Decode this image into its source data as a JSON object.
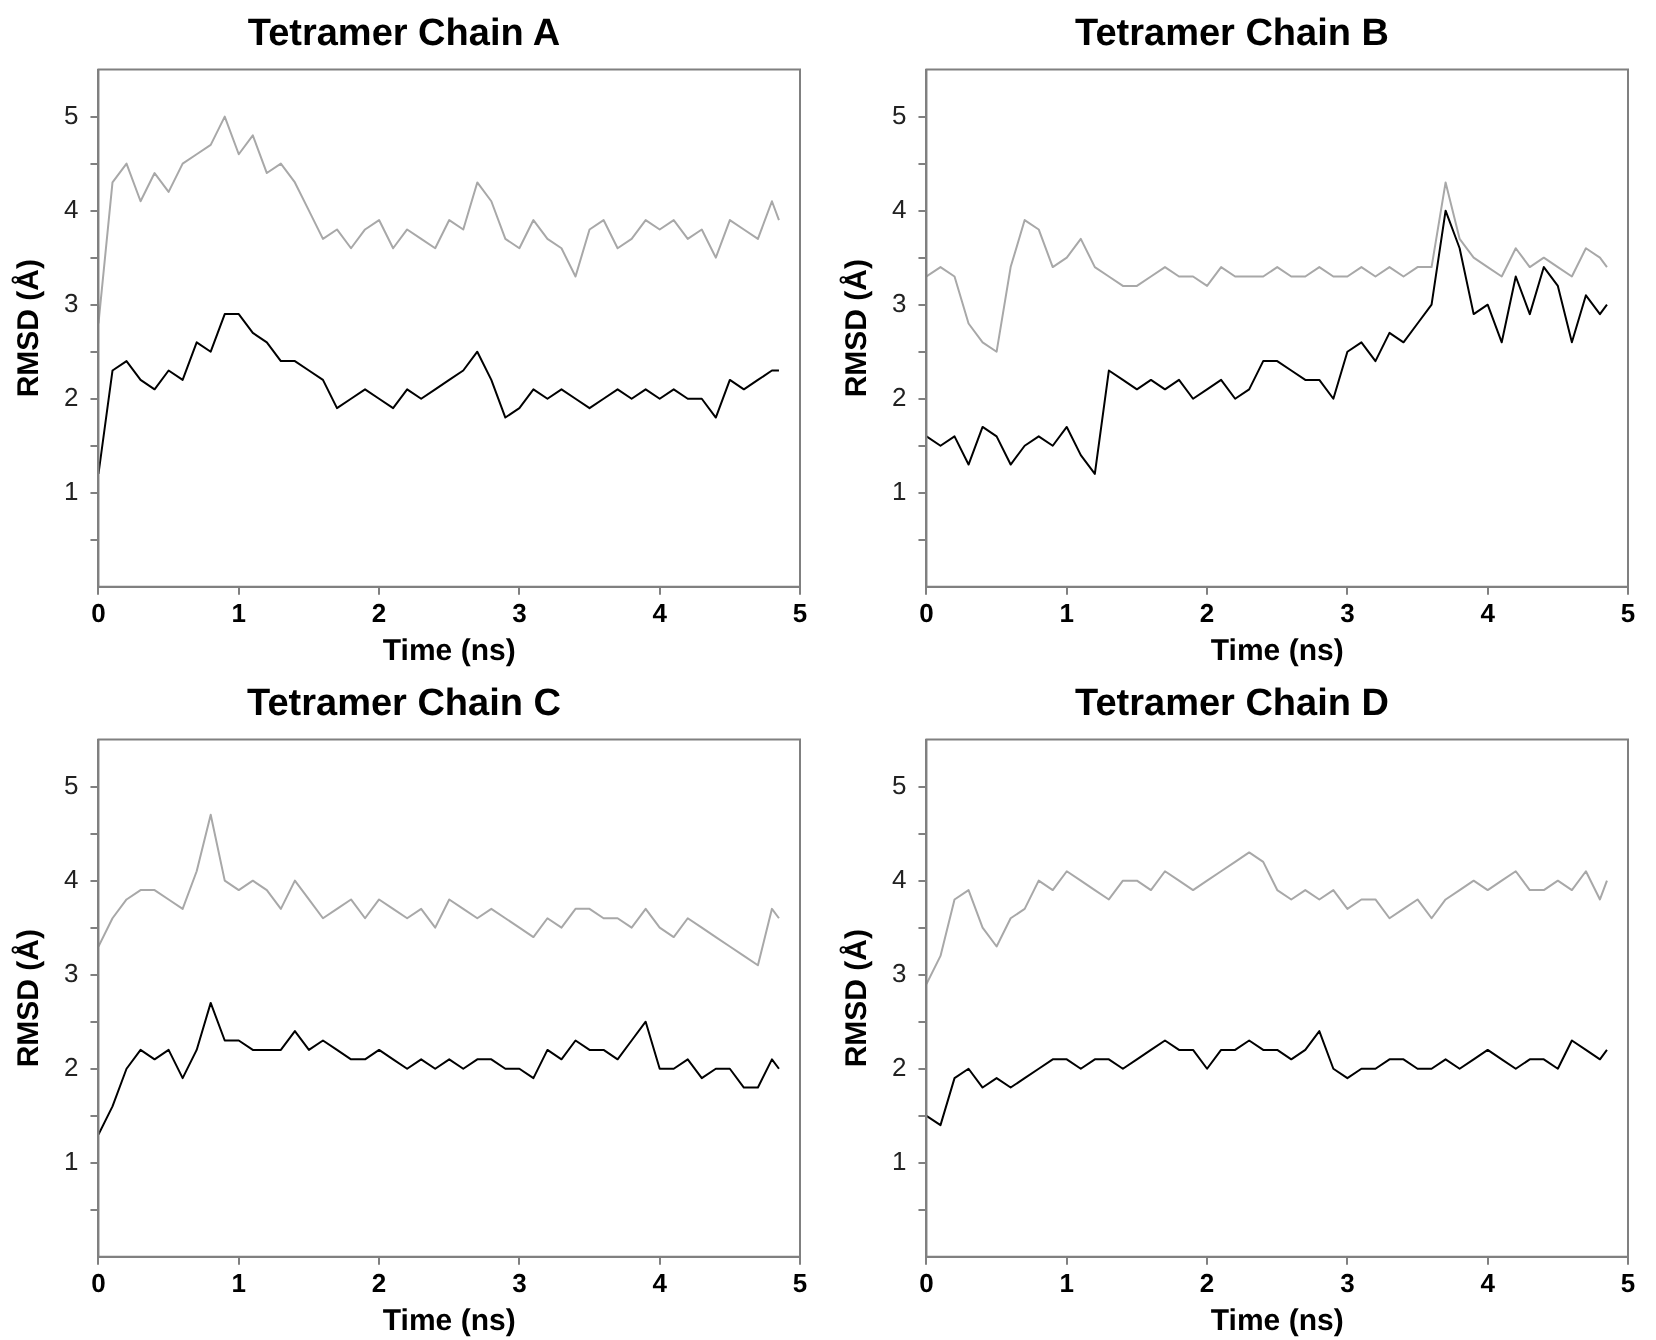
{
  "chart_data": [
    {
      "type": "line",
      "title": "Tetramer Chain A",
      "xlabel": "Time (ns)",
      "ylabel": "RMSD (Å)",
      "xlim": [
        0,
        5
      ],
      "xticks": [
        0,
        1,
        2,
        3,
        4,
        5
      ],
      "ylim": [
        0,
        5.5
      ],
      "yticks": [
        {
          "value": 0.5,
          "label": null
        },
        1,
        {
          "value": 1.5,
          "label": null
        },
        2,
        {
          "value": 2.5,
          "label": null
        },
        3,
        {
          "value": 3.5,
          "label": null
        },
        4,
        {
          "value": 4.5,
          "label": null
        },
        5
      ],
      "grid": false,
      "legend": false,
      "marker": "none",
      "line_style": "solid",
      "x": [
        0,
        0.1,
        0.2,
        0.3,
        0.4,
        0.5,
        0.6,
        0.7,
        0.8,
        0.9,
        1.0,
        1.1,
        1.2,
        1.3,
        1.4,
        1.5,
        1.6,
        1.7,
        1.8,
        1.9,
        2.0,
        2.1,
        2.2,
        2.3,
        2.4,
        2.5,
        2.6,
        2.7,
        2.8,
        2.9,
        3.0,
        3.1,
        3.2,
        3.3,
        3.4,
        3.5,
        3.6,
        3.7,
        3.8,
        3.9,
        4.0,
        4.1,
        4.2,
        4.3,
        4.4,
        4.5,
        4.6,
        4.7,
        4.8,
        4.85
      ],
      "series": [
        {
          "color": "#a8a8a8",
          "values": [
            2.8,
            4.3,
            4.5,
            4.1,
            4.4,
            4.2,
            4.5,
            4.6,
            4.7,
            5.0,
            4.6,
            4.8,
            4.4,
            4.5,
            4.3,
            4.0,
            3.7,
            3.8,
            3.6,
            3.8,
            3.9,
            3.6,
            3.8,
            3.7,
            3.6,
            3.9,
            3.8,
            4.3,
            4.1,
            3.7,
            3.6,
            3.9,
            3.7,
            3.6,
            3.3,
            3.8,
            3.9,
            3.6,
            3.7,
            3.9,
            3.8,
            3.9,
            3.7,
            3.8,
            3.5,
            3.9,
            3.8,
            3.7,
            4.1,
            3.9
          ]
        },
        {
          "color": "#000000",
          "values": [
            1.2,
            2.3,
            2.4,
            2.2,
            2.1,
            2.3,
            2.2,
            2.6,
            2.5,
            2.9,
            2.9,
            2.7,
            2.6,
            2.4,
            2.4,
            2.3,
            2.2,
            1.9,
            2.0,
            2.1,
            2.0,
            1.9,
            2.1,
            2.0,
            2.1,
            2.2,
            2.3,
            2.5,
            2.2,
            1.8,
            1.9,
            2.1,
            2.0,
            2.1,
            2.0,
            1.9,
            2.0,
            2.1,
            2.0,
            2.1,
            2.0,
            2.1,
            2.0,
            2.0,
            1.8,
            2.2,
            2.1,
            2.2,
            2.3,
            2.3
          ]
        }
      ]
    },
    {
      "type": "line",
      "title": "Tetramer Chain B",
      "xlabel": "Time (ns)",
      "ylabel": "RMSD (Å)",
      "xlim": [
        0,
        5
      ],
      "xticks": [
        0,
        1,
        2,
        3,
        4,
        5
      ],
      "ylim": [
        0,
        5.5
      ],
      "yticks": [
        {
          "value": 0.5,
          "label": null
        },
        1,
        {
          "value": 1.5,
          "label": null
        },
        2,
        {
          "value": 2.5,
          "label": null
        },
        3,
        {
          "value": 3.5,
          "label": null
        },
        4,
        {
          "value": 4.5,
          "label": null
        },
        5
      ],
      "grid": false,
      "legend": false,
      "marker": "none",
      "line_style": "solid",
      "x": [
        0,
        0.1,
        0.2,
        0.3,
        0.4,
        0.5,
        0.6,
        0.7,
        0.8,
        0.9,
        1.0,
        1.1,
        1.2,
        1.3,
        1.4,
        1.5,
        1.6,
        1.7,
        1.8,
        1.9,
        2.0,
        2.1,
        2.2,
        2.3,
        2.4,
        2.5,
        2.6,
        2.7,
        2.8,
        2.9,
        3.0,
        3.1,
        3.2,
        3.3,
        3.4,
        3.5,
        3.6,
        3.7,
        3.8,
        3.9,
        4.0,
        4.1,
        4.2,
        4.3,
        4.4,
        4.5,
        4.6,
        4.7,
        4.8,
        4.85
      ],
      "series": [
        {
          "color": "#a8a8a8",
          "values": [
            3.3,
            3.4,
            3.3,
            2.8,
            2.6,
            2.5,
            3.4,
            3.9,
            3.8,
            3.4,
            3.5,
            3.7,
            3.4,
            3.3,
            3.2,
            3.2,
            3.3,
            3.4,
            3.3,
            3.3,
            3.2,
            3.4,
            3.3,
            3.3,
            3.3,
            3.4,
            3.3,
            3.3,
            3.4,
            3.3,
            3.3,
            3.4,
            3.3,
            3.4,
            3.3,
            3.4,
            3.4,
            4.3,
            3.7,
            3.5,
            3.4,
            3.3,
            3.6,
            3.4,
            3.5,
            3.4,
            3.3,
            3.6,
            3.5,
            3.4
          ]
        },
        {
          "color": "#000000",
          "values": [
            1.6,
            1.5,
            1.6,
            1.3,
            1.7,
            1.6,
            1.3,
            1.5,
            1.6,
            1.5,
            1.7,
            1.4,
            1.2,
            2.3,
            2.2,
            2.1,
            2.2,
            2.1,
            2.2,
            2.0,
            2.1,
            2.2,
            2.0,
            2.1,
            2.4,
            2.4,
            2.3,
            2.2,
            2.2,
            2.0,
            2.5,
            2.6,
            2.4,
            2.7,
            2.6,
            2.8,
            3.0,
            4.0,
            3.6,
            2.9,
            3.0,
            2.6,
            3.3,
            2.9,
            3.4,
            3.2,
            2.6,
            3.1,
            2.9,
            3.0
          ]
        }
      ]
    },
    {
      "type": "line",
      "title": "Tetramer Chain C",
      "xlabel": "Time (ns)",
      "ylabel": "RMSD (Å)",
      "xlim": [
        0,
        5
      ],
      "xticks": [
        0,
        1,
        2,
        3,
        4,
        5
      ],
      "ylim": [
        0,
        5.5
      ],
      "yticks": [
        {
          "value": 0.5,
          "label": null
        },
        1,
        {
          "value": 1.5,
          "label": null
        },
        2,
        {
          "value": 2.5,
          "label": null
        },
        3,
        {
          "value": 3.5,
          "label": null
        },
        4,
        {
          "value": 4.5,
          "label": null
        },
        5
      ],
      "grid": false,
      "legend": false,
      "marker": "none",
      "line_style": "solid",
      "x": [
        0,
        0.1,
        0.2,
        0.3,
        0.4,
        0.5,
        0.6,
        0.7,
        0.8,
        0.9,
        1.0,
        1.1,
        1.2,
        1.3,
        1.4,
        1.5,
        1.6,
        1.7,
        1.8,
        1.9,
        2.0,
        2.1,
        2.2,
        2.3,
        2.4,
        2.5,
        2.6,
        2.7,
        2.8,
        2.9,
        3.0,
        3.1,
        3.2,
        3.3,
        3.4,
        3.5,
        3.6,
        3.7,
        3.8,
        3.9,
        4.0,
        4.1,
        4.2,
        4.3,
        4.4,
        4.5,
        4.6,
        4.7,
        4.8,
        4.85
      ],
      "series": [
        {
          "color": "#a8a8a8",
          "values": [
            3.3,
            3.6,
            3.8,
            3.9,
            3.9,
            3.8,
            3.7,
            4.1,
            4.7,
            4.0,
            3.9,
            4.0,
            3.9,
            3.7,
            4.0,
            3.8,
            3.6,
            3.7,
            3.8,
            3.6,
            3.8,
            3.7,
            3.6,
            3.7,
            3.5,
            3.8,
            3.7,
            3.6,
            3.7,
            3.6,
            3.5,
            3.4,
            3.6,
            3.5,
            3.7,
            3.7,
            3.6,
            3.6,
            3.5,
            3.7,
            3.5,
            3.4,
            3.6,
            3.5,
            3.4,
            3.3,
            3.2,
            3.1,
            3.7,
            3.6
          ]
        },
        {
          "color": "#000000",
          "values": [
            1.3,
            1.6,
            2.0,
            2.2,
            2.1,
            2.2,
            1.9,
            2.2,
            2.7,
            2.3,
            2.3,
            2.2,
            2.2,
            2.2,
            2.4,
            2.2,
            2.3,
            2.2,
            2.1,
            2.1,
            2.2,
            2.1,
            2.0,
            2.1,
            2.0,
            2.1,
            2.0,
            2.1,
            2.1,
            2.0,
            2.0,
            1.9,
            2.2,
            2.1,
            2.3,
            2.2,
            2.2,
            2.1,
            2.3,
            2.5,
            2.0,
            2.0,
            2.1,
            1.9,
            2.0,
            2.0,
            1.8,
            1.8,
            2.1,
            2.0
          ]
        }
      ]
    },
    {
      "type": "line",
      "title": "Tetramer Chain D",
      "xlabel": "Time (ns)",
      "ylabel": "RMSD (Å)",
      "xlim": [
        0,
        5
      ],
      "xticks": [
        0,
        1,
        2,
        3,
        4,
        5
      ],
      "ylim": [
        0,
        5.5
      ],
      "yticks": [
        {
          "value": 0.5,
          "label": null
        },
        1,
        {
          "value": 1.5,
          "label": null
        },
        2,
        {
          "value": 2.5,
          "label": null
        },
        3,
        {
          "value": 3.5,
          "label": null
        },
        4,
        {
          "value": 4.5,
          "label": null
        },
        5
      ],
      "grid": false,
      "legend": false,
      "marker": "none",
      "line_style": "solid",
      "x": [
        0,
        0.1,
        0.2,
        0.3,
        0.4,
        0.5,
        0.6,
        0.7,
        0.8,
        0.9,
        1.0,
        1.1,
        1.2,
        1.3,
        1.4,
        1.5,
        1.6,
        1.7,
        1.8,
        1.9,
        2.0,
        2.1,
        2.2,
        2.3,
        2.4,
        2.5,
        2.6,
        2.7,
        2.8,
        2.9,
        3.0,
        3.1,
        3.2,
        3.3,
        3.4,
        3.5,
        3.6,
        3.7,
        3.8,
        3.9,
        4.0,
        4.1,
        4.2,
        4.3,
        4.4,
        4.5,
        4.6,
        4.7,
        4.8,
        4.85
      ],
      "series": [
        {
          "color": "#a8a8a8",
          "values": [
            2.9,
            3.2,
            3.8,
            3.9,
            3.5,
            3.3,
            3.6,
            3.7,
            4.0,
            3.9,
            4.1,
            4.0,
            3.9,
            3.8,
            4.0,
            4.0,
            3.9,
            4.1,
            4.0,
            3.9,
            4.0,
            4.1,
            4.2,
            4.3,
            4.2,
            3.9,
            3.8,
            3.9,
            3.8,
            3.9,
            3.7,
            3.8,
            3.8,
            3.6,
            3.7,
            3.8,
            3.6,
            3.8,
            3.9,
            4.0,
            3.9,
            4.0,
            4.1,
            3.9,
            3.9,
            4.0,
            3.9,
            4.1,
            3.8,
            4.0
          ]
        },
        {
          "color": "#000000",
          "values": [
            1.5,
            1.4,
            1.9,
            2.0,
            1.8,
            1.9,
            1.8,
            1.9,
            2.0,
            2.1,
            2.1,
            2.0,
            2.1,
            2.1,
            2.0,
            2.1,
            2.2,
            2.3,
            2.2,
            2.2,
            2.0,
            2.2,
            2.2,
            2.3,
            2.2,
            2.2,
            2.1,
            2.2,
            2.4,
            2.0,
            1.9,
            2.0,
            2.0,
            2.1,
            2.1,
            2.0,
            2.0,
            2.1,
            2.0,
            2.1,
            2.2,
            2.1,
            2.0,
            2.1,
            2.1,
            2.0,
            2.3,
            2.2,
            2.1,
            2.2
          ]
        }
      ]
    }
  ]
}
